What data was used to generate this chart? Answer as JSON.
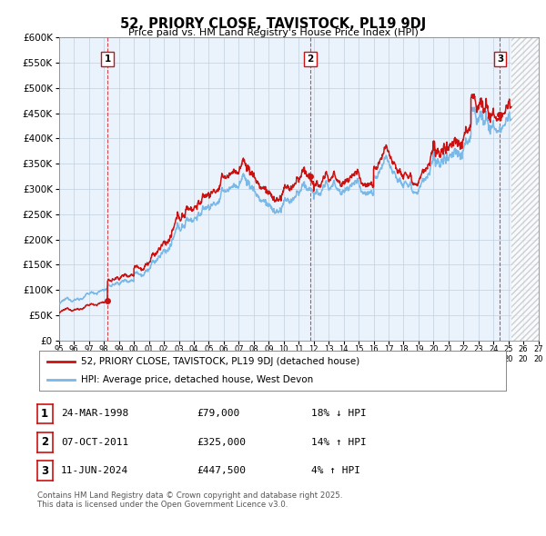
{
  "title": "52, PRIORY CLOSE, TAVISTOCK, PL19 9DJ",
  "subtitle": "Price paid vs. HM Land Registry's House Price Index (HPI)",
  "xlim_start": 1995.0,
  "xlim_end": 2027.0,
  "ylim_min": 0,
  "ylim_max": 600000,
  "ytick_step": 50000,
  "sale_dates": [
    1998.23,
    2011.77,
    2024.44
  ],
  "sale_prices": [
    79000,
    325000,
    447500
  ],
  "sale_labels": [
    "1",
    "2",
    "3"
  ],
  "hpi_color": "#7ab8e8",
  "price_color": "#cc1111",
  "chart_bg": "#eaf2fb",
  "legend_entry1": "52, PRIORY CLOSE, TAVISTOCK, PL19 9DJ (detached house)",
  "legend_entry2": "HPI: Average price, detached house, West Devon",
  "table_rows": [
    {
      "num": "1",
      "date": "24-MAR-1998",
      "price": "£79,000",
      "hpi": "18% ↓ HPI"
    },
    {
      "num": "2",
      "date": "07-OCT-2011",
      "price": "£325,000",
      "hpi": "14% ↑ HPI"
    },
    {
      "num": "3",
      "date": "11-JUN-2024",
      "price": "£447,500",
      "hpi": "4% ↑ HPI"
    }
  ],
  "footnote1": "Contains HM Land Registry data © Crown copyright and database right 2025.",
  "footnote2": "This data is licensed under the Open Government Licence v3.0.",
  "bg_color": "#ffffff",
  "grid_color": "#c0d0e0",
  "hatch_start": 2025.2
}
